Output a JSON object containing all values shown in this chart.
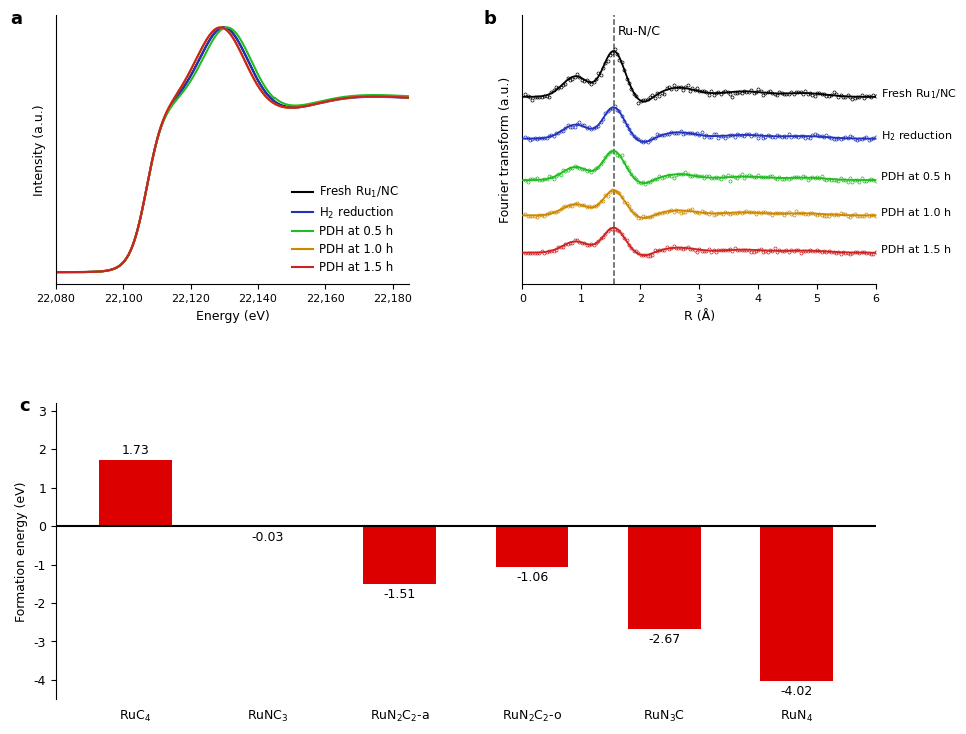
{
  "panel_a": {
    "xlabel": "Energy (eV)",
    "ylabel": "Intensity (a.u.)",
    "x_range": [
      22080,
      22185
    ],
    "x_ticks": [
      22080,
      22100,
      22120,
      22140,
      22160,
      22180
    ],
    "lines": [
      {
        "label": "Fresh Ru$_1$/NC",
        "color": "#000000",
        "lw": 1.5,
        "peak_x": 22130,
        "amp_scale": 1.0,
        "post_scale": 1.0
      },
      {
        "label": "H$_2$ reduction",
        "color": "#2233bb",
        "lw": 1.5,
        "peak_x": 22130,
        "amp_scale": 0.995,
        "post_scale": 0.99
      },
      {
        "label": "PDH at 0.5 h",
        "color": "#22bb22",
        "lw": 1.5,
        "peak_x": 22131,
        "amp_scale": 1.008,
        "post_scale": 1.02
      },
      {
        "label": "PDH at 1.0 h",
        "color": "#cc8800",
        "lw": 1.5,
        "peak_x": 22129,
        "amp_scale": 0.993,
        "post_scale": 1.0
      },
      {
        "label": "PDH at 1.5 h",
        "color": "#cc2222",
        "lw": 1.5,
        "peak_x": 22129,
        "amp_scale": 0.99,
        "post_scale": 1.0
      }
    ]
  },
  "panel_b": {
    "xlabel": "R (Å)",
    "ylabel": "Fourier transform (a.u.)",
    "x_range": [
      0,
      6
    ],
    "x_ticks": [
      0,
      1,
      2,
      3,
      4,
      5,
      6
    ],
    "dashed_x": 1.55,
    "annotation": "Ru-N/C",
    "labels": [
      "Fresh Ru$_1$/NC",
      "H$_2$ reduction",
      "PDH at 0.5 h",
      "PDH at 1.0 h",
      "PDH at 1.5 h"
    ],
    "colors": [
      "#000000",
      "#2233bb",
      "#22bb22",
      "#cc8800",
      "#cc2222"
    ],
    "offsets": [
      0.85,
      0.65,
      0.45,
      0.28,
      0.1
    ],
    "amps": [
      0.22,
      0.15,
      0.14,
      0.12,
      0.12
    ]
  },
  "panel_c": {
    "ylabel": "Formation energy (eV)",
    "cat_labels": [
      "RuC$_4$",
      "RuNC$_3$",
      "RuN$_2$C$_2$-a",
      "RuN$_2$C$_2$-o",
      "RuN$_3$C",
      "RuN$_4$"
    ],
    "values": [
      1.73,
      -0.03,
      -1.51,
      -1.06,
      -2.67,
      -4.02
    ],
    "bar_color": "#dd0000",
    "y_range": [
      -4.5,
      3.2
    ],
    "y_ticks": [
      -4,
      -3,
      -2,
      -1,
      0,
      1,
      2,
      3
    ]
  }
}
